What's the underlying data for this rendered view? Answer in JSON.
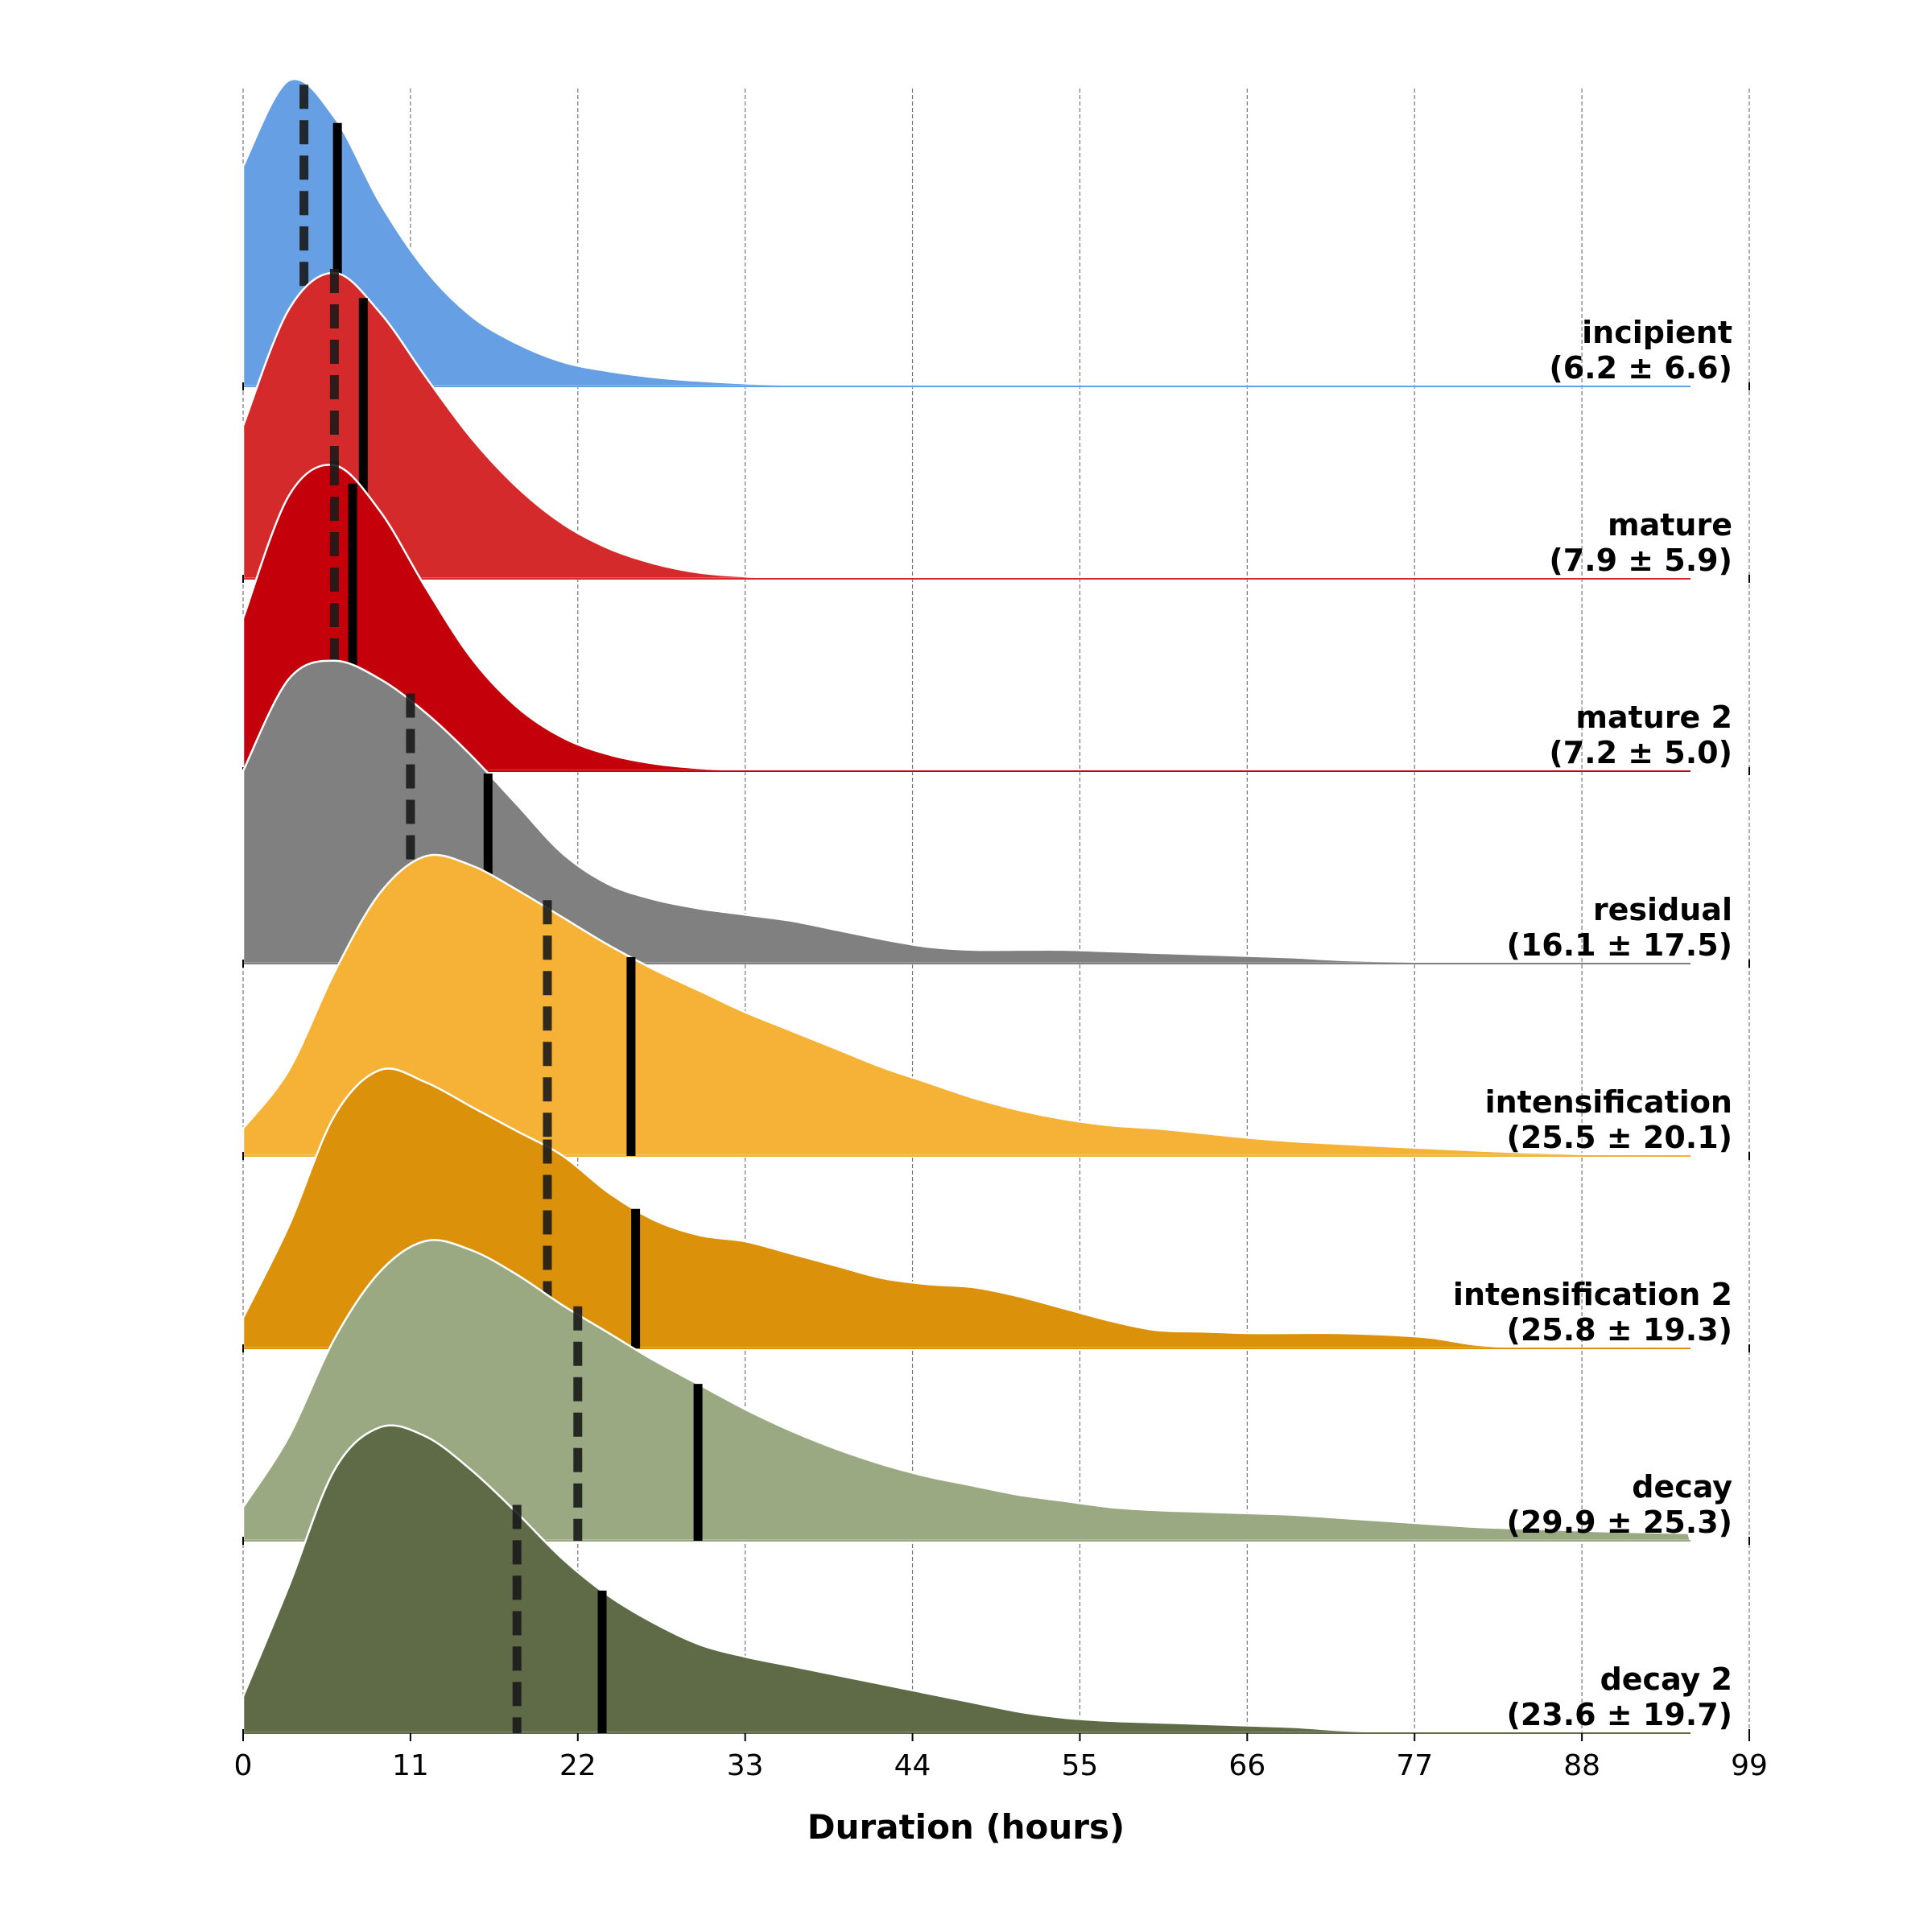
{
  "chart_data": {
    "type": "ridgeline",
    "xlabel": "Duration (hours)",
    "xlim": [
      0,
      99
    ],
    "xticks": [
      0,
      11,
      22,
      33,
      44,
      55,
      66,
      77,
      88,
      99
    ],
    "grid": "vertical dashed",
    "x": [
      0,
      3,
      6,
      9,
      12,
      15,
      18,
      21,
      24,
      27,
      30,
      33,
      36,
      39,
      42,
      45,
      48,
      51,
      54,
      57,
      60,
      63,
      66,
      69,
      72,
      75,
      78,
      81,
      84,
      87,
      90,
      95
    ],
    "series": [
      {
        "name": "incipient",
        "stats": "(6.2 ± 6.6)",
        "color": "#669fe4",
        "median": 4.0,
        "mean": 6.2,
        "density": [
          0.72,
          1.0,
          0.88,
          0.6,
          0.38,
          0.23,
          0.14,
          0.08,
          0.05,
          0.03,
          0.018,
          0.01,
          0.006,
          0.004,
          0.002,
          0.001,
          0.001,
          0,
          0,
          0,
          0,
          0,
          0,
          0,
          0,
          0,
          0,
          0,
          0,
          0,
          0,
          0
        ]
      },
      {
        "name": "mature",
        "stats": "(7.9 ± 5.9)",
        "color": "#d52a2b",
        "median": 6.0,
        "mean": 7.9,
        "density": [
          0.5,
          0.88,
          1.0,
          0.87,
          0.66,
          0.46,
          0.3,
          0.18,
          0.1,
          0.05,
          0.02,
          0.008,
          0.004,
          0.002,
          0.001,
          0,
          0,
          0,
          0,
          0,
          0,
          0,
          0,
          0,
          0,
          0,
          0,
          0,
          0,
          0,
          0,
          0
        ]
      },
      {
        "name": "mature 2",
        "stats": "(7.2 ± 5.0)",
        "color": "#c4000b",
        "median": 6.0,
        "mean": 7.2,
        "density": [
          0.5,
          0.9,
          1.0,
          0.85,
          0.6,
          0.37,
          0.21,
          0.11,
          0.055,
          0.025,
          0.01,
          0.004,
          0.002,
          0.001,
          0,
          0,
          0,
          0,
          0,
          0,
          0,
          0,
          0,
          0,
          0,
          0,
          0,
          0,
          0,
          0,
          0,
          0
        ]
      },
      {
        "name": "residual",
        "stats": "(16.1 ± 17.5)",
        "color": "#808080",
        "median": 11.0,
        "mean": 16.1,
        "density": [
          0.63,
          0.93,
          0.99,
          0.93,
          0.82,
          0.68,
          0.52,
          0.36,
          0.26,
          0.21,
          0.18,
          0.16,
          0.14,
          0.11,
          0.08,
          0.055,
          0.045,
          0.045,
          0.045,
          0.04,
          0.035,
          0.03,
          0.025,
          0.02,
          0.012,
          0.008,
          0.006,
          0.004,
          0.003,
          0.002,
          0.001,
          0
        ]
      },
      {
        "name": "intensification",
        "stats": "(25.5 ± 20.1)",
        "color": "#f5b236",
        "median": 20.0,
        "mean": 25.5,
        "density": [
          0.09,
          0.28,
          0.6,
          0.86,
          0.98,
          0.95,
          0.87,
          0.78,
          0.69,
          0.61,
          0.54,
          0.47,
          0.41,
          0.35,
          0.29,
          0.24,
          0.19,
          0.15,
          0.12,
          0.1,
          0.09,
          0.075,
          0.06,
          0.048,
          0.04,
          0.032,
          0.025,
          0.018,
          0.012,
          0.008,
          0.005,
          0.003
        ]
      },
      {
        "name": "intensification 2",
        "stats": "(25.8 ± 19.3)",
        "color": "#db920a",
        "median": 20.0,
        "mean": 25.8,
        "density": [
          0.1,
          0.4,
          0.76,
          0.91,
          0.87,
          0.79,
          0.71,
          0.63,
          0.51,
          0.42,
          0.37,
          0.35,
          0.31,
          0.27,
          0.23,
          0.21,
          0.2,
          0.17,
          0.13,
          0.09,
          0.06,
          0.055,
          0.05,
          0.05,
          0.05,
          0.045,
          0.035,
          0.012,
          0.003,
          0.001,
          0,
          0
        ]
      },
      {
        "name": "decay",
        "stats": "(29.9 ± 25.3)",
        "color": "#9aa981",
        "median": 22.0,
        "mean": 29.9,
        "density": [
          0.11,
          0.34,
          0.66,
          0.88,
          0.98,
          0.95,
          0.87,
          0.77,
          0.68,
          0.59,
          0.51,
          0.43,
          0.36,
          0.3,
          0.25,
          0.21,
          0.18,
          0.15,
          0.13,
          0.11,
          0.1,
          0.095,
          0.09,
          0.085,
          0.075,
          0.065,
          0.055,
          0.045,
          0.04,
          0.035,
          0.03,
          0.025
        ]
      },
      {
        "name": "decay 2",
        "stats": "(23.6 ± 19.7)",
        "color": "#5e6b46",
        "median": 18.0,
        "mean": 23.6,
        "density": [
          0.12,
          0.48,
          0.86,
          1.0,
          0.97,
          0.86,
          0.72,
          0.57,
          0.45,
          0.36,
          0.29,
          0.25,
          0.22,
          0.19,
          0.16,
          0.13,
          0.1,
          0.07,
          0.05,
          0.04,
          0.035,
          0.03,
          0.025,
          0.02,
          0.01,
          0.005,
          0.004,
          0.003,
          0.002,
          0.002,
          0.001,
          0.001
        ]
      }
    ]
  }
}
